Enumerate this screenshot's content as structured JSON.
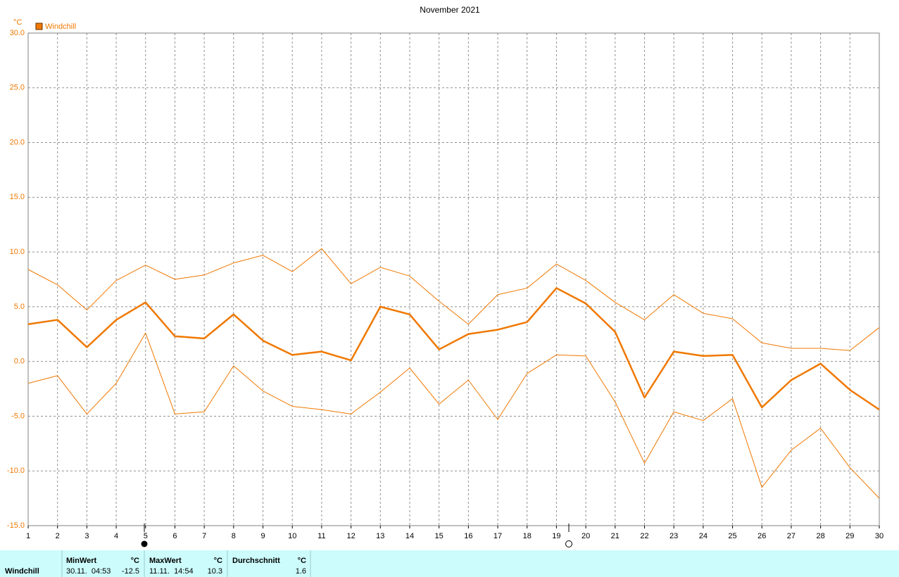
{
  "chart_data": {
    "type": "line",
    "title": "November 2021",
    "y_label": "°C",
    "legend": "Windchill",
    "legend_color": "#f07800",
    "x": [
      1,
      2,
      3,
      4,
      5,
      6,
      7,
      8,
      9,
      10,
      11,
      12,
      13,
      14,
      15,
      16,
      17,
      18,
      19,
      20,
      21,
      22,
      23,
      24,
      25,
      26,
      27,
      28,
      29,
      30
    ],
    "xlim": [
      1,
      30
    ],
    "xticks": [
      1,
      2,
      3,
      4,
      5,
      6,
      7,
      8,
      9,
      10,
      11,
      12,
      13,
      14,
      15,
      16,
      17,
      18,
      19,
      20,
      21,
      22,
      23,
      24,
      25,
      26,
      27,
      28,
      29,
      30
    ],
    "ylim": [
      -15,
      30
    ],
    "yticks": [
      {
        "value": -15,
        "label": "-15.0"
      },
      {
        "value": -10,
        "label": "-10.0"
      },
      {
        "value": -5,
        "label": "-5.0"
      },
      {
        "value": 0,
        "label": "0.0"
      },
      {
        "value": 5,
        "label": "5.0"
      },
      {
        "value": 10,
        "label": "10.0"
      },
      {
        "value": 15,
        "label": "15.0"
      },
      {
        "value": 20,
        "label": "20.0"
      },
      {
        "value": 25,
        "label": "25.0"
      },
      {
        "value": 30,
        "label": "30.0"
      }
    ],
    "grid": true,
    "series": [
      {
        "color": "#f07800",
        "width": 1,
        "values": [
          8.4,
          7.0,
          4.7,
          7.4,
          8.8,
          7.5,
          7.9,
          9.0,
          9.7,
          8.2,
          10.3,
          7.1,
          8.6,
          7.8,
          5.5,
          3.4,
          6.1,
          6.7,
          8.9,
          7.4,
          5.4,
          3.8,
          6.1,
          4.4,
          3.9,
          1.7,
          1.2,
          1.2,
          1.0,
          3.1
        ]
      },
      {
        "color": "#f07800",
        "width": 2.5,
        "values": [
          3.4,
          3.8,
          1.3,
          3.8,
          5.4,
          2.3,
          2.1,
          4.3,
          1.9,
          0.6,
          0.9,
          0.1,
          5.0,
          4.3,
          1.1,
          2.5,
          2.9,
          3.6,
          6.7,
          5.3,
          2.7,
          -3.3,
          0.9,
          0.5,
          0.6,
          -4.2,
          -1.7,
          -0.2,
          -2.6,
          -4.4
        ]
      },
      {
        "color": "#f07800",
        "width": 1,
        "values": [
          -2.0,
          -1.3,
          -4.8,
          -2.0,
          2.6,
          -4.8,
          -4.6,
          -0.4,
          -2.7,
          -4.1,
          -4.4,
          -4.8,
          -2.8,
          -0.6,
          -3.9,
          -1.7,
          -5.3,
          -1.1,
          0.6,
          0.5,
          -3.7,
          -9.3,
          -4.6,
          -5.4,
          -3.4,
          -11.5,
          -8.1,
          -6.1,
          -9.7,
          -12.5
        ]
      }
    ]
  },
  "summary": {
    "row_label": "Windchill",
    "min": {
      "header": "MinWert",
      "unit": "°C",
      "time": "30.11.  04:53",
      "value": -12.5
    },
    "max": {
      "header": "MaxWert",
      "unit": "°C",
      "time": "11.11.  14:54",
      "value": 10.3
    },
    "avg": {
      "header": "Durchschnitt",
      "unit": "°C",
      "value": 1.6
    }
  }
}
